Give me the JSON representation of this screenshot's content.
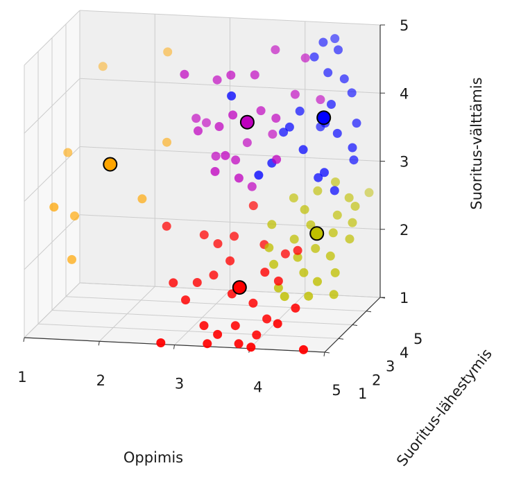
{
  "chart_data": {
    "type": "scatter",
    "dimensions": 3,
    "title": "",
    "xlabel": "Oppimis",
    "ylabel": "Suoritus-lähestymis",
    "zlabel": "Suoritus-välttämis",
    "x_ticks": [
      "1",
      "2",
      "3",
      "4",
      "5"
    ],
    "y_ticks": [
      "1",
      "2",
      "3",
      "4",
      "5"
    ],
    "z_ticks": [
      "1",
      "2",
      "3",
      "4",
      "5"
    ],
    "xlim": [
      1,
      5
    ],
    "ylim": [
      1,
      5
    ],
    "zlim": [
      1,
      5
    ],
    "grid": true,
    "legend": "none",
    "series": [
      {
        "color": "#ffa500",
        "points": [
          [
            1.1,
            3.6,
            3.2
          ],
          [
            1.3,
            3.0,
            2.4
          ],
          [
            1.3,
            2.8,
            1.8
          ],
          [
            1.4,
            4.5,
            4.3
          ],
          [
            2.3,
            4.3,
            4.6
          ],
          [
            2.2,
            3.0,
            2.7
          ],
          [
            2.4,
            3.7,
            3.4
          ],
          [
            1.1,
            2.6,
            2.6
          ]
        ],
        "centroid": [
          1.7,
          3.4,
          3.1
        ]
      },
      {
        "color": "#bf00bf",
        "points": [
          [
            2.8,
            2.8,
            4.6
          ],
          [
            3.2,
            3.0,
            4.5
          ],
          [
            3.4,
            2.9,
            4.6
          ],
          [
            3.9,
            3.4,
            4.9
          ],
          [
            3.7,
            3.0,
            4.6
          ],
          [
            3.3,
            2.6,
            3.9
          ],
          [
            3.0,
            2.7,
            3.8
          ],
          [
            2.9,
            3.1,
            3.9
          ],
          [
            3.5,
            2.5,
            4.1
          ],
          [
            3.8,
            2.9,
            4.1
          ],
          [
            4.0,
            2.9,
            4.0
          ],
          [
            4.2,
            3.2,
            4.3
          ],
          [
            3.4,
            2.5,
            3.5
          ],
          [
            3.6,
            3.0,
            3.6
          ],
          [
            3.3,
            2.3,
            3.3
          ],
          [
            3.6,
            2.4,
            3.2
          ],
          [
            4.3,
            3.4,
            4.8
          ],
          [
            4.1,
            2.4,
            3.5
          ],
          [
            3.5,
            2.7,
            3.4
          ],
          [
            3.9,
            3.2,
            3.7
          ],
          [
            4.5,
            3.4,
            4.2
          ],
          [
            3.2,
            2.9,
            3.4
          ],
          [
            3.0,
            3.3,
            3.8
          ],
          [
            3.7,
            2.8,
            3.0
          ]
        ],
        "centroid": [
          3.6,
          3.0,
          3.9
        ]
      },
      {
        "color": "#0000ff",
        "points": [
          [
            4.5,
            3.6,
            5.0
          ],
          [
            4.6,
            3.9,
            5.0
          ],
          [
            4.6,
            3.4,
            4.6
          ],
          [
            4.3,
            3.0,
            4.1
          ],
          [
            4.7,
            3.1,
            4.2
          ],
          [
            4.8,
            3.5,
            4.5
          ],
          [
            4.6,
            3.2,
            3.9
          ],
          [
            4.9,
            3.5,
            4.3
          ],
          [
            4.2,
            2.8,
            3.9
          ],
          [
            4.4,
            2.7,
            3.6
          ],
          [
            4.8,
            3.0,
            3.8
          ],
          [
            5.0,
            3.3,
            3.9
          ],
          [
            4.5,
            3.4,
            3.8
          ],
          [
            4.7,
            2.6,
            3.3
          ],
          [
            4.0,
            2.6,
            3.4
          ],
          [
            3.9,
            2.2,
            3.3
          ],
          [
            4.6,
            2.7,
            3.2
          ],
          [
            5.0,
            3.1,
            3.4
          ],
          [
            3.5,
            2.4,
            4.4
          ],
          [
            4.4,
            3.5,
            4.8
          ],
          [
            4.1,
            2.9,
            3.8
          ],
          [
            4.8,
            2.8,
            3.0
          ],
          [
            5.0,
            3.0,
            3.6
          ],
          [
            4.7,
            3.6,
            4.9
          ]
        ],
        "centroid": [
          4.6,
          3.1,
          4.0
        ]
      },
      {
        "color": "#bfbf00",
        "points": [
          [
            4.0,
            2.6,
            2.5
          ],
          [
            4.2,
            3.1,
            2.8
          ],
          [
            4.4,
            2.8,
            2.7
          ],
          [
            4.5,
            3.2,
            2.9
          ],
          [
            4.7,
            3.4,
            3.0
          ],
          [
            4.9,
            3.3,
            2.8
          ],
          [
            4.3,
            2.6,
            2.3
          ],
          [
            4.5,
            2.7,
            2.5
          ],
          [
            4.8,
            3.0,
            2.6
          ],
          [
            5.0,
            3.2,
            2.7
          ],
          [
            4.4,
            2.3,
            2.1
          ],
          [
            4.6,
            2.5,
            2.2
          ],
          [
            4.8,
            2.7,
            2.4
          ],
          [
            5.0,
            3.0,
            2.5
          ],
          [
            4.5,
            2.2,
            1.9
          ],
          [
            4.8,
            2.5,
            2.1
          ],
          [
            5.0,
            2.8,
            2.3
          ],
          [
            4.7,
            2.1,
            1.8
          ],
          [
            4.9,
            2.3,
            1.9
          ],
          [
            4.3,
            1.9,
            1.6
          ],
          [
            4.6,
            2.0,
            1.6
          ],
          [
            4.0,
            2.4,
            2.2
          ],
          [
            4.1,
            2.2,
            2.0
          ],
          [
            4.9,
            2.2,
            1.6
          ],
          [
            5.0,
            4.2,
            2.7
          ],
          [
            4.2,
            2.0,
            1.7
          ]
        ],
        "centroid": [
          4.6,
          2.6,
          2.4
        ]
      },
      {
        "color": "#ff0000",
        "points": [
          [
            2.6,
            2.6,
            2.4
          ],
          [
            3.1,
            2.6,
            2.3
          ],
          [
            3.3,
            2.5,
            2.2
          ],
          [
            3.5,
            2.6,
            2.3
          ],
          [
            3.9,
            2.6,
            2.2
          ],
          [
            4.2,
            2.5,
            2.1
          ],
          [
            3.5,
            2.3,
            2.0
          ],
          [
            3.3,
            2.2,
            1.8
          ],
          [
            3.1,
            2.1,
            1.7
          ],
          [
            2.8,
            2.0,
            1.7
          ],
          [
            4.0,
            2.1,
            1.9
          ],
          [
            4.2,
            2.0,
            1.8
          ],
          [
            3.6,
            1.9,
            1.6
          ],
          [
            3.9,
            1.8,
            1.5
          ],
          [
            4.1,
            1.7,
            1.3
          ],
          [
            3.7,
            1.6,
            1.2
          ],
          [
            4.0,
            1.5,
            1.1
          ],
          [
            3.3,
            1.5,
            1.2
          ],
          [
            3.5,
            1.4,
            1.1
          ],
          [
            3.8,
            1.3,
            1.0
          ],
          [
            2.8,
            1.1,
            1.0
          ],
          [
            3.4,
            1.2,
            1.0
          ],
          [
            4.0,
            1.1,
            1.0
          ],
          [
            4.3,
            1.4,
            1.3
          ],
          [
            4.5,
            1.6,
            1.5
          ],
          [
            4.7,
            1.1,
            1.0
          ],
          [
            3.0,
            1.8,
            1.5
          ],
          [
            4.4,
            2.3,
            2.2
          ],
          [
            3.7,
            2.9,
            2.7
          ]
        ],
        "centroid": [
          3.7,
          1.9,
          1.7
        ]
      }
    ]
  }
}
